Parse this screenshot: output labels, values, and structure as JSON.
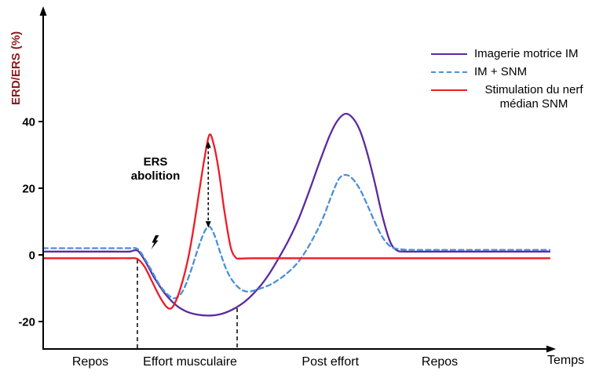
{
  "figure": {
    "y_axis_label": "ERD/ERS (%)",
    "x_axis_label": "Temps",
    "annotation_ers": "ERS abolition",
    "colors": {
      "im": "#5b2a9d",
      "im_snm": "#4a90d9",
      "snm": "#ee1c25",
      "axis": "#000000",
      "y_axis_label": "#8b1a1a"
    },
    "icons": {
      "stimulation_marker": "lightning-bolt-icon"
    }
  },
  "chart_data": {
    "type": "line",
    "title": "",
    "xlabel": "Temps",
    "ylabel": "ERD/ERS (%)",
    "xlim": [
      0,
      100
    ],
    "ylim": [
      -28,
      50
    ],
    "grid": false,
    "legend_position": "top-right",
    "y_ticks": [
      40,
      20,
      0,
      -20
    ],
    "phases": [
      {
        "label": "Repos",
        "t": 9.3
      },
      {
        "label": "Effort musculaire",
        "t": 29.0
      },
      {
        "label": "Post effort",
        "t": 56.7
      },
      {
        "label": "Repos",
        "t": 78.3
      }
    ],
    "effort_window_lines": [
      {
        "t": 18.6,
        "y_top": -1.4
      },
      {
        "t": 38.3,
        "y_top": -16
      }
    ],
    "ers_arrow": {
      "t": 32.6,
      "y_from": 8.2,
      "y_to": 34
    },
    "stim_marker": {
      "t": 22,
      "y": 3,
      "icon": "lightning-bolt-icon"
    },
    "series": [
      {
        "id": "im",
        "name": "Imagerie motrice IM",
        "color": "#5b2a9d",
        "style": "solid",
        "points": [
          [
            0,
            1
          ],
          [
            8,
            1
          ],
          [
            14,
            1
          ],
          [
            17,
            1
          ],
          [
            18.6,
            1.3
          ],
          [
            20,
            -1.5
          ],
          [
            22,
            -7
          ],
          [
            24,
            -11.5
          ],
          [
            26,
            -14.8
          ],
          [
            28,
            -16.8
          ],
          [
            30,
            -17.8
          ],
          [
            32.5,
            -18.2
          ],
          [
            35,
            -17.8
          ],
          [
            37.5,
            -16.3
          ],
          [
            40,
            -13.8
          ],
          [
            42.5,
            -10
          ],
          [
            44.5,
            -6
          ],
          [
            46.5,
            -1
          ],
          [
            48.5,
            4.5
          ],
          [
            50.5,
            11
          ],
          [
            52.5,
            19
          ],
          [
            54.5,
            27.5
          ],
          [
            56.5,
            35.5
          ],
          [
            58,
            40
          ],
          [
            59.6,
            42.3
          ],
          [
            61,
            41.3
          ],
          [
            62.5,
            37.5
          ],
          [
            64,
            30.5
          ],
          [
            65.5,
            21.5
          ],
          [
            67,
            11.5
          ],
          [
            68.5,
            4
          ],
          [
            69.8,
            1.4
          ],
          [
            71.5,
            1
          ],
          [
            76,
            1
          ],
          [
            84,
            1
          ],
          [
            92,
            1
          ],
          [
            100,
            1
          ]
        ]
      },
      {
        "id": "im-snm",
        "name": "IM + SNM",
        "color": "#4a90d9",
        "style": "dashed",
        "points": [
          [
            0,
            2
          ],
          [
            8,
            2
          ],
          [
            14,
            2
          ],
          [
            17,
            2
          ],
          [
            18.6,
            1.8
          ],
          [
            20,
            -1
          ],
          [
            21.5,
            -5
          ],
          [
            23,
            -9
          ],
          [
            24.5,
            -11.8
          ],
          [
            26,
            -13
          ],
          [
            27.5,
            -11
          ],
          [
            29,
            -5.5
          ],
          [
            30.5,
            1.5
          ],
          [
            31.8,
            6.8
          ],
          [
            32.8,
            8.5
          ],
          [
            33.8,
            6
          ],
          [
            35,
            0.5
          ],
          [
            36.2,
            -4.5
          ],
          [
            37.5,
            -8
          ],
          [
            39,
            -10.3
          ],
          [
            40.5,
            -11
          ],
          [
            42.5,
            -10.3
          ],
          [
            45,
            -8.8
          ],
          [
            47.5,
            -6.3
          ],
          [
            50,
            -2.8
          ],
          [
            52,
            1.5
          ],
          [
            54,
            7
          ],
          [
            55.5,
            12
          ],
          [
            57,
            18
          ],
          [
            58.4,
            22.8
          ],
          [
            59.7,
            24
          ],
          [
            61,
            23
          ],
          [
            62.5,
            19.8
          ],
          [
            64,
            15
          ],
          [
            65.5,
            9.8
          ],
          [
            67,
            5.3
          ],
          [
            68.5,
            2.6
          ],
          [
            70,
            1.8
          ],
          [
            73,
            1.5
          ],
          [
            80,
            1.5
          ],
          [
            90,
            1.5
          ],
          [
            100,
            1.5
          ]
        ]
      },
      {
        "id": "snm",
        "name": "Stimulation du nerf médian SNM",
        "color": "#ee1c25",
        "style": "solid",
        "points": [
          [
            0,
            -1
          ],
          [
            8,
            -1
          ],
          [
            14,
            -1
          ],
          [
            17,
            -1
          ],
          [
            18.6,
            -1.2
          ],
          [
            20,
            -3.5
          ],
          [
            21.5,
            -8
          ],
          [
            23,
            -12.5
          ],
          [
            24.3,
            -15.5
          ],
          [
            25.3,
            -16
          ],
          [
            26.3,
            -13.5
          ],
          [
            27.5,
            -8
          ],
          [
            28.7,
            -0.5
          ],
          [
            29.8,
            9
          ],
          [
            30.8,
            19
          ],
          [
            31.8,
            28.5
          ],
          [
            32.8,
            36
          ],
          [
            33.7,
            33
          ],
          [
            34.7,
            25
          ],
          [
            35.8,
            13
          ],
          [
            37,
            2.5
          ],
          [
            38,
            -0.8
          ],
          [
            39,
            -1.1
          ],
          [
            41,
            -1
          ],
          [
            46,
            -1
          ],
          [
            55,
            -1
          ],
          [
            70,
            -1
          ],
          [
            85,
            -1
          ],
          [
            100,
            -1
          ]
        ]
      }
    ]
  }
}
